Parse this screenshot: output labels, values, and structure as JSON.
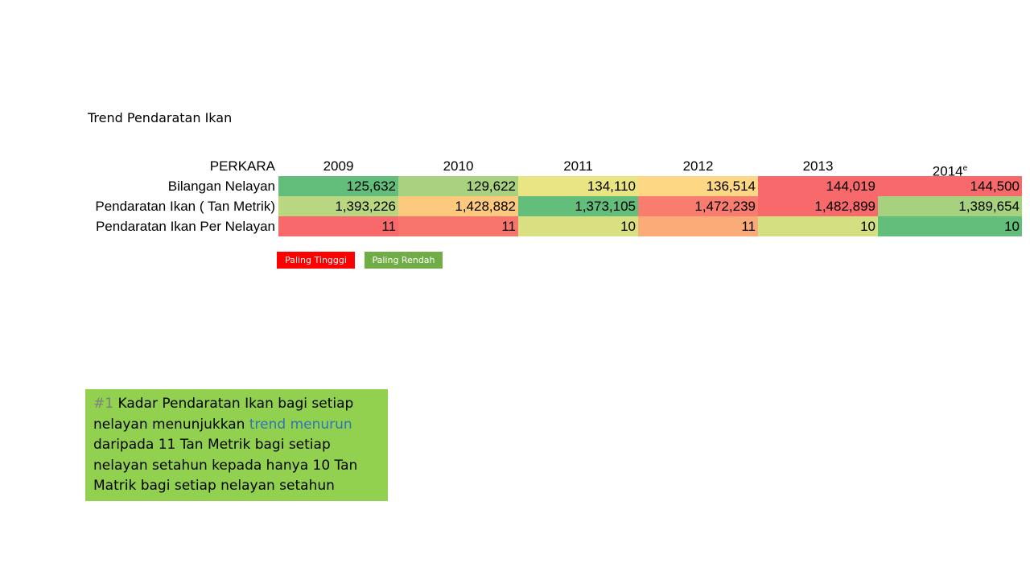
{
  "title": "Trend Pendaratan Ikan",
  "table": {
    "corner": "PERKARA",
    "years": [
      "2009",
      "2010",
      "2011",
      "2012",
      "2013",
      "2014"
    ],
    "year_suffix": "e",
    "rows": [
      {
        "label": "Bilangan Nelayan",
        "values": [
          "125,632",
          "129,622",
          "134,110",
          "136,514",
          "144,019",
          "144,500"
        ],
        "colors": [
          "#63be7b",
          "#a8d27f",
          "#e9e582",
          "#fdd783",
          "#f8696b",
          "#f8696b"
        ]
      },
      {
        "label": "Pendaratan Ikan ( Tan Metrik)",
        "values": [
          "1,393,226",
          "1,428,882",
          "1,373,105",
          "1,472,239",
          "1,482,899",
          "1,389,654"
        ],
        "colors": [
          "#b9d780",
          "#fdc97d",
          "#63be7b",
          "#f97d6e",
          "#f8696b",
          "#a6d27f"
        ]
      },
      {
        "label": "Pendaratan Ikan Per Nelayan",
        "values": [
          "11",
          "11",
          "10",
          "11",
          "10",
          "10"
        ],
        "colors": [
          "#f8696b",
          "#f8756d",
          "#d8e081",
          "#fbab77",
          "#d4df81",
          "#63be7b"
        ]
      }
    ]
  },
  "legend": {
    "high": {
      "label": "Paling Tingggi",
      "color": "#ff0000"
    },
    "low": {
      "label": "Paling Rendah",
      "color": "#70ad47"
    }
  },
  "note": {
    "number": "#1",
    "text_before": " Kadar Pendaratan Ikan bagi setiap nelayan menunjukkan ",
    "highlight": "trend menurun",
    "text_after": " daripada 11 Tan Metrik bagi setiap nelayan setahun kepada hanya 10 Tan Matrik bagi setiap nelayan setahun",
    "background": "#92d050",
    "highlight_color": "#2e75b6"
  }
}
